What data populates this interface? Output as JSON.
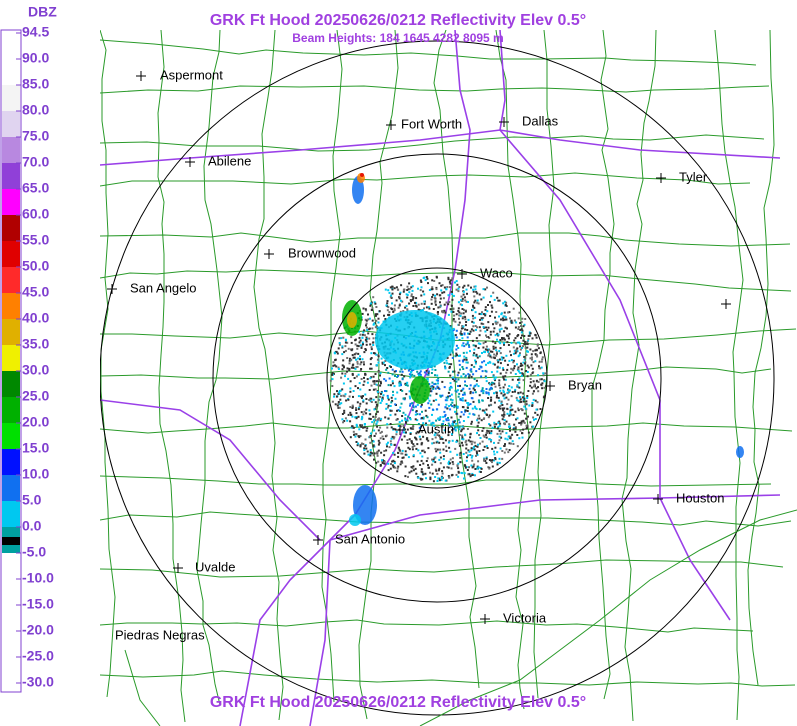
{
  "header": {
    "title": "GRK Ft Hood 20250626/0212 Reflectivity Elev 0.5°",
    "subtitle": "Beam Heights: 184 1645 4282 8095 m",
    "footer": "GRK Ft Hood 20250626/0212 Reflectivity Elev 0.5°"
  },
  "legend": {
    "title": "DBZ",
    "entries": [
      {
        "label": "94.5",
        "color": "#ffffff"
      },
      {
        "label": "90.0",
        "color": "#ffffff"
      },
      {
        "label": "85.0",
        "color": "#f4f4f4"
      },
      {
        "label": "80.0",
        "color": "#e0d4f0"
      },
      {
        "label": "75.0",
        "color": "#b888e0"
      },
      {
        "label": "70.0",
        "color": "#9040d8"
      },
      {
        "label": "65.0",
        "color": "#ff00ff"
      },
      {
        "label": "60.0",
        "color": "#b00000"
      },
      {
        "label": "55.0",
        "color": "#e00000"
      },
      {
        "label": "50.0",
        "color": "#ff2a2a"
      },
      {
        "label": "45.0",
        "color": "#ff8000"
      },
      {
        "label": "40.0",
        "color": "#e0b000"
      },
      {
        "label": "35.0",
        "color": "#f0f000"
      },
      {
        "label": "30.0",
        "color": "#008800"
      },
      {
        "label": "25.0",
        "color": "#00b000"
      },
      {
        "label": "20.0",
        "color": "#00e000"
      },
      {
        "label": "15.0",
        "color": "#0010ff"
      },
      {
        "label": "10.0",
        "color": "#1070f0"
      },
      {
        "label": "5.0",
        "color": "#00c8f0"
      },
      {
        "label": "0.0",
        "color": "#00a0a0"
      },
      {
        "label": "-5.0",
        "color": "#ffffff"
      },
      {
        "label": "-10.0",
        "color": "#ffffff"
      },
      {
        "label": "-15.0",
        "color": "#ffffff"
      },
      {
        "label": "-20.0",
        "color": "#ffffff"
      },
      {
        "label": "-25.0",
        "color": "#ffffff"
      },
      {
        "label": "-30.0",
        "color": "#ffffff"
      }
    ]
  },
  "cities": [
    "Aspermont",
    "Fort Worth",
    "Dallas",
    "Abilene",
    "Tyler",
    "Brownwood",
    "Waco",
    "San Angelo",
    "Bryan",
    "Austin",
    "Houston",
    "San Antonio",
    "Uvalde",
    "Victoria",
    "Piedras Negras"
  ]
}
